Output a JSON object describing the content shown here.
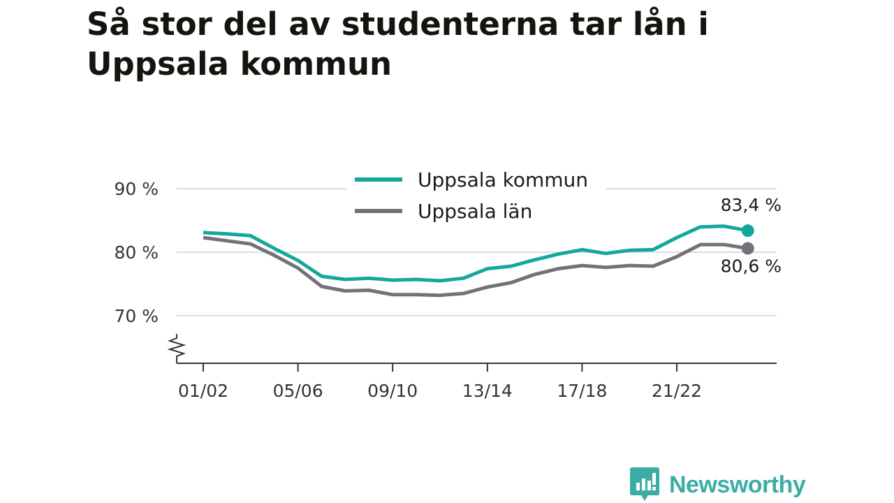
{
  "title": "Så stor del av studenterna tar lån i Uppsala kommun",
  "brand": {
    "name": "Newsworthy",
    "icon": "newsworthy-logo-icon"
  },
  "chart_data": {
    "type": "line",
    "title": "Så stor del av studenterna tar lån i Uppsala kommun",
    "xlabel": "",
    "ylabel": "",
    "x": [
      "01/02",
      "02/03",
      "03/04",
      "04/05",
      "05/06",
      "06/07",
      "07/08",
      "08/09",
      "09/10",
      "10/11",
      "11/12",
      "12/13",
      "13/14",
      "14/15",
      "15/16",
      "16/17",
      "17/18",
      "18/19",
      "19/20",
      "20/21",
      "21/22",
      "22/23",
      "23/24",
      "24/25"
    ],
    "x_tick_labels": [
      "01/02",
      "05/06",
      "09/10",
      "13/14",
      "17/18",
      "21/22"
    ],
    "y_ticks": [
      70,
      80,
      90
    ],
    "y_tick_labels": [
      "70 %",
      "80 %",
      "90 %"
    ],
    "ylim": [
      63.5,
      92
    ],
    "axis_break": true,
    "grid": true,
    "legend": "top-center",
    "series": [
      {
        "name": "Uppsala kommun",
        "color": "#14a89c",
        "values": [
          83.1,
          82.9,
          82.6,
          80.6,
          78.7,
          76.2,
          75.7,
          75.9,
          75.6,
          75.7,
          75.5,
          75.9,
          77.4,
          77.8,
          78.8,
          79.7,
          80.4,
          79.8,
          80.3,
          80.4,
          82.3,
          84.0,
          84.1,
          83.4
        ],
        "end_label": "83,4 %"
      },
      {
        "name": "Uppsala län",
        "color": "#73727a",
        "values": [
          82.3,
          81.8,
          81.3,
          79.5,
          77.5,
          74.6,
          73.9,
          74.0,
          73.3,
          73.3,
          73.2,
          73.5,
          74.5,
          75.2,
          76.5,
          77.4,
          77.9,
          77.6,
          77.9,
          77.8,
          79.3,
          81.2,
          81.2,
          80.6
        ],
        "end_label": "80,6 %"
      }
    ]
  }
}
